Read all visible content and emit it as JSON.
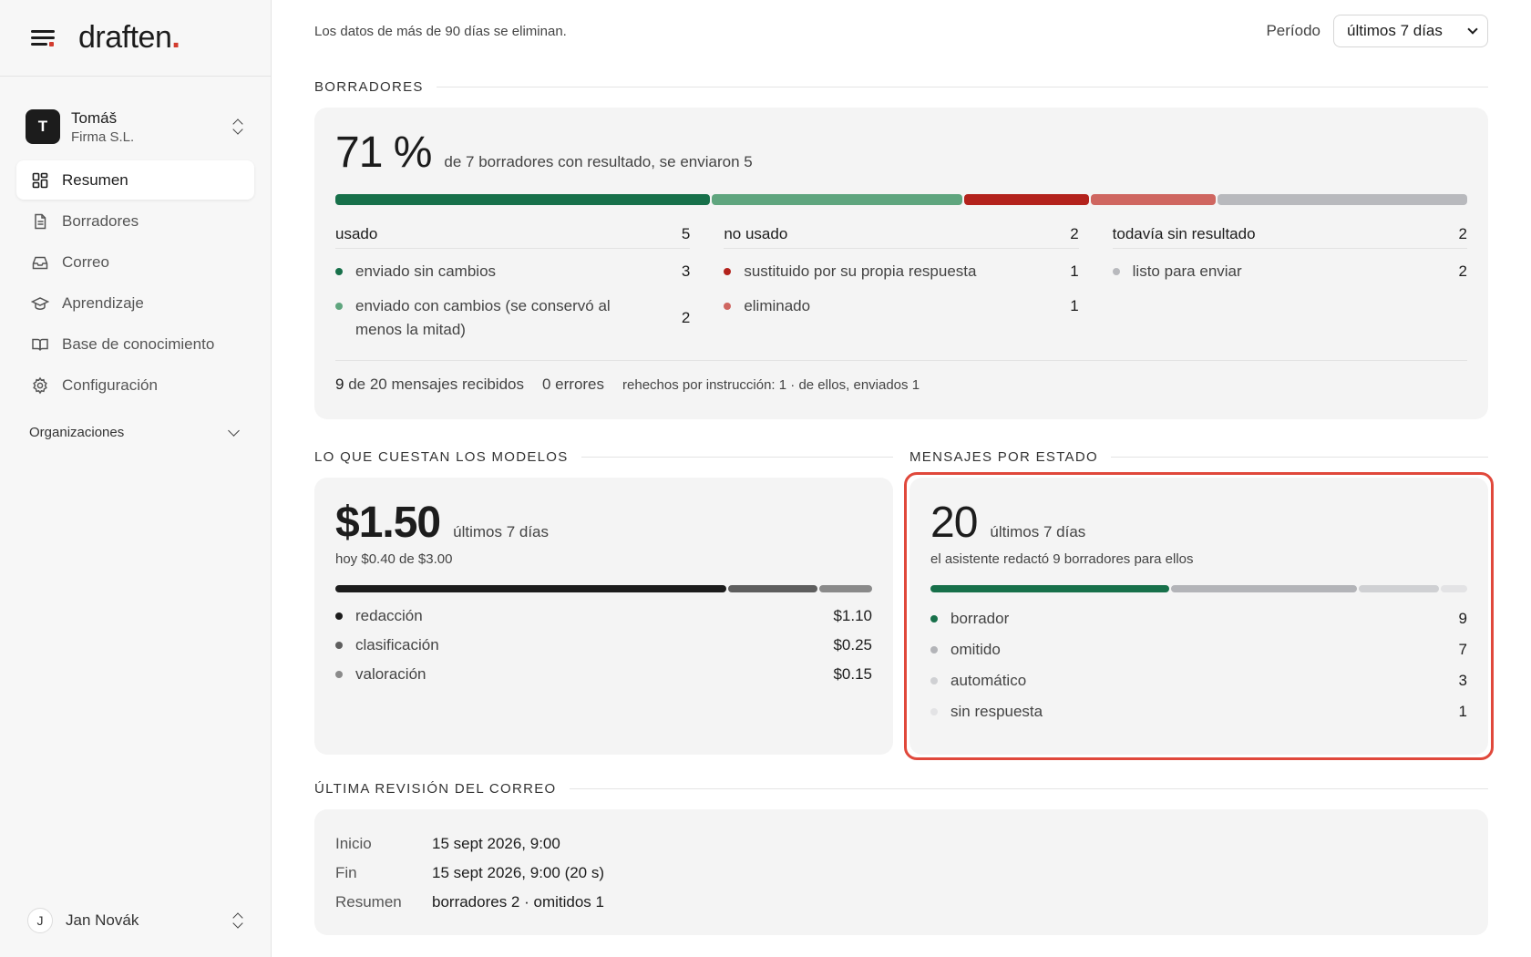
{
  "brand": {
    "logo_text": "draften",
    "logo_dot": "."
  },
  "account": {
    "initial": "T",
    "name": "Tomáš",
    "org": "Firma S.L."
  },
  "nav": {
    "items": [
      {
        "label": "Resumen",
        "icon": "dashboard-icon",
        "active": true
      },
      {
        "label": "Borradores",
        "icon": "document-icon"
      },
      {
        "label": "Correo",
        "icon": "inbox-icon"
      },
      {
        "label": "Aprendizaje",
        "icon": "graduation-cap-icon"
      },
      {
        "label": "Base de conocimiento",
        "icon": "book-icon"
      },
      {
        "label": "Configuración",
        "icon": "gear-icon"
      }
    ]
  },
  "organizations": {
    "label": "Organizaciones"
  },
  "user": {
    "initial": "J",
    "name": "Jan Novák"
  },
  "topbar": {
    "retention_notice": "Los datos de más de 90 días se eliminan.",
    "period_label": "Período",
    "period_value": "últimos 7 días"
  },
  "drafts": {
    "section_title": "BORRADORES",
    "percent": "71 %",
    "summary": "de 7 borradores con resultado, se enviaron 5",
    "bar": [
      {
        "name": "enviado sin cambios",
        "value": 3,
        "color": "#17704a"
      },
      {
        "name": "enviado con cambios",
        "value": 2,
        "color": "#5fa57e"
      },
      {
        "name": "sustituido",
        "value": 1,
        "color": "#b3221c"
      },
      {
        "name": "eliminado",
        "value": 1,
        "color": "#cf6660"
      },
      {
        "name": "listo para enviar",
        "value": 2,
        "color": "#b8b9bd"
      }
    ],
    "columns": [
      {
        "title": "usado",
        "total": "5",
        "rows": [
          {
            "label": "enviado sin cambios",
            "value": "3",
            "color": "#17704a"
          },
          {
            "label": "enviado con cambios (se conservó al menos la mitad)",
            "value": "2",
            "color": "#5fa57e"
          }
        ]
      },
      {
        "title": "no usado",
        "total": "2",
        "rows": [
          {
            "label": "sustituido por su propia respuesta",
            "value": "1",
            "color": "#b3221c"
          },
          {
            "label": "eliminado",
            "value": "1",
            "color": "#cf6660"
          }
        ]
      },
      {
        "title": "todavía sin resultado",
        "total": "2",
        "rows": [
          {
            "label": "listo para enviar",
            "value": "2",
            "color": "#b8b9bd"
          }
        ]
      }
    ],
    "stats": {
      "received_count": "9",
      "received_text": "de 20 mensajes recibidos",
      "errors": "0 errores",
      "redone": "rehechos por instrucción: 1 · de ellos, enviados 1"
    }
  },
  "costs": {
    "section_title": "LO QUE CUESTAN LOS MODELOS",
    "total": "$1.50",
    "period": "últimos 7 días",
    "today": "hoy $0.40 de $3.00",
    "items": [
      {
        "label": "redacción",
        "value": "$1.10",
        "amount": 1.1,
        "color": "#1c1c1c"
      },
      {
        "label": "clasificación",
        "value": "$0.25",
        "amount": 0.25,
        "color": "#5e5e5e"
      },
      {
        "label": "valoración",
        "value": "$0.15",
        "amount": 0.15,
        "color": "#8a8a8a"
      }
    ]
  },
  "messages": {
    "section_title": "MENSAJES POR ESTADO",
    "total": "20",
    "period": "últimos 7 días",
    "subtitle": "el asistente redactó 9 borradores para ellos",
    "items": [
      {
        "label": "borrador",
        "value": "9",
        "count": 9,
        "color": "#17704a"
      },
      {
        "label": "omitido",
        "value": "7",
        "count": 7,
        "color": "#b3b4b8"
      },
      {
        "label": "automático",
        "value": "3",
        "count": 3,
        "color": "#cfd0d3"
      },
      {
        "label": "sin respuesta",
        "value": "1",
        "count": 1,
        "color": "#e3e3e5"
      }
    ]
  },
  "review": {
    "section_title": "ÚLTIMA REVISIÓN DEL CORREO",
    "rows": [
      {
        "key": "Inicio",
        "value": "15 sept 2026, 9:00"
      },
      {
        "key": "Fin",
        "value": "15 sept 2026, 9:00 (20 s)"
      },
      {
        "key": "Resumen",
        "value": "borradores 2 · omitidos 1"
      }
    ]
  }
}
